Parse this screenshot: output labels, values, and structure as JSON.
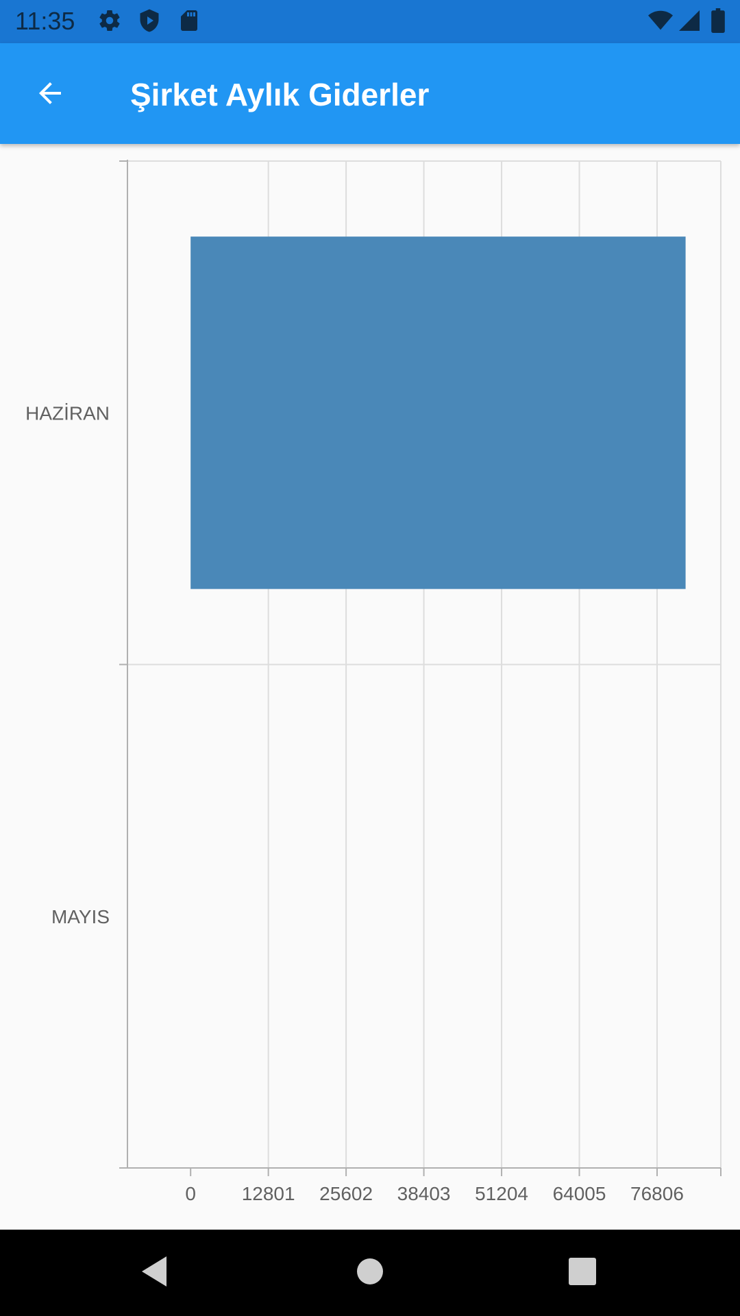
{
  "status_bar": {
    "time": "11:35",
    "left_icons": [
      "gear-icon",
      "shield-play-icon",
      "sd-card-icon"
    ],
    "right_icons": [
      "wifi-icon",
      "signal-icon",
      "battery-icon"
    ]
  },
  "app_bar": {
    "title": "Şirket Aylık Giderler",
    "back_icon": "arrow-back-icon",
    "color": "#2196f3"
  },
  "chart_data": {
    "type": "bar",
    "orientation": "horizontal",
    "categories": [
      "HAZİRAN",
      "MAYIS"
    ],
    "values": [
      81500,
      0
    ],
    "xticks": [
      "0",
      "12801",
      "25602",
      "38403",
      "51204",
      "64005",
      "76806"
    ],
    "xlim": [
      -10400,
      87300
    ],
    "grid": true,
    "bar_color": "#4a88b8"
  },
  "nav_bar": {
    "icons": [
      "back-triangle-icon",
      "home-circle-icon",
      "recents-square-icon"
    ]
  }
}
